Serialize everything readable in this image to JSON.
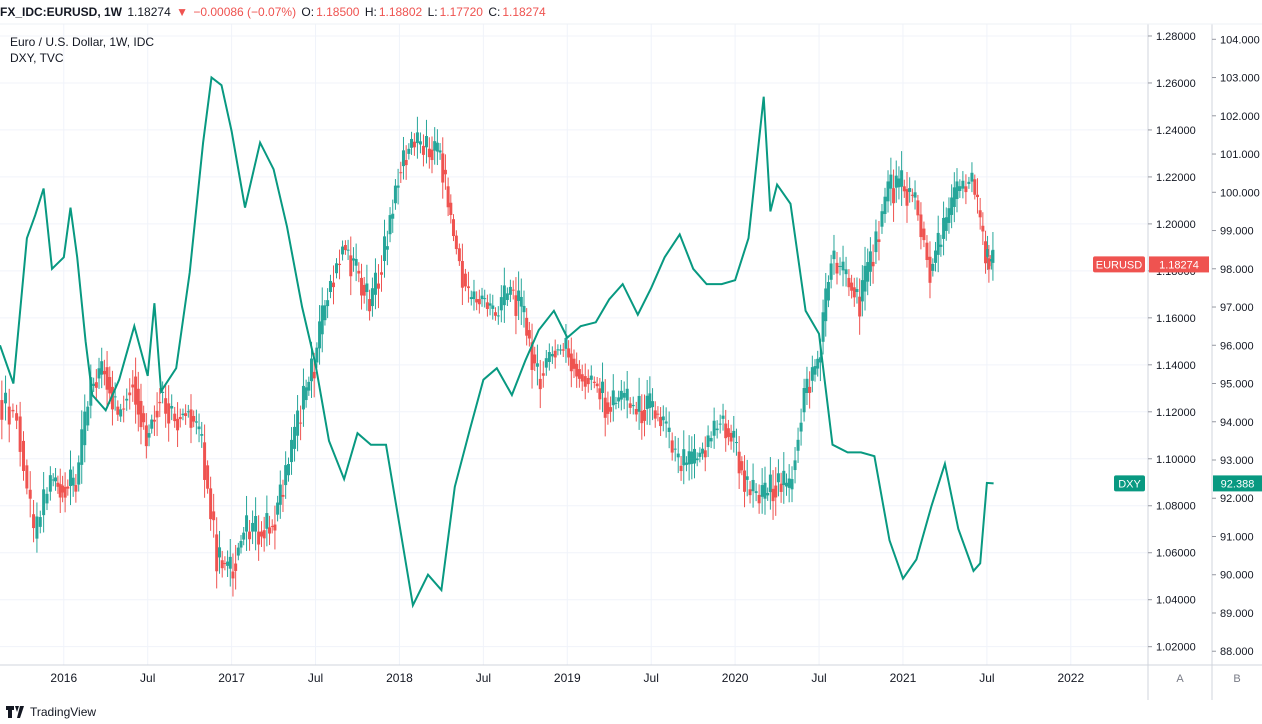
{
  "header": {
    "symbol": "FX_IDC:EURUSD, 1W",
    "last": "1.18274",
    "change_arrow": "▼",
    "change": "−0.00086 (−0.07%)",
    "o_label": "O:",
    "o_value": "1.18500",
    "h_label": "H:",
    "h_value": "1.18802",
    "l_label": "L:",
    "l_value": "1.17720",
    "c_label": "C:",
    "c_value": "1.18274"
  },
  "legend": {
    "main": "Euro / U.S. Dollar, 1W, IDC",
    "compare": "DXY, TVC"
  },
  "footer": {
    "brand": "TradingView"
  },
  "colors": {
    "up": "#26a69a",
    "down": "#ef5350",
    "dxy": "#089981",
    "grid": "#f0f3fa"
  },
  "chart_data": {
    "type": "line",
    "x_tick_labels": [
      "2016",
      "Jul",
      "2017",
      "Jul",
      "2018",
      "Jul",
      "2019",
      "Jul",
      "2020",
      "Jul",
      "2021",
      "Jul",
      "2022"
    ],
    "x_tick_dates": [
      2016.0,
      2016.5,
      2017.0,
      2017.5,
      2018.0,
      2018.5,
      2019.0,
      2019.5,
      2020.0,
      2020.5,
      2021.0,
      2021.5,
      2022.0
    ],
    "xlim": [
      2015.62,
      2022.46
    ],
    "right_axis": {
      "ticks": [
        "1.28000",
        "1.26000",
        "1.24000",
        "1.22000",
        "1.20000",
        "1.18000",
        "1.16000",
        "1.14000",
        "1.12000",
        "1.10000",
        "1.08000",
        "1.06000",
        "1.04000",
        "1.02000"
      ],
      "ylim": [
        1.0122,
        1.2851
      ],
      "label": "A"
    },
    "left_axis": {
      "ticks": [
        "104.000",
        "103.000",
        "102.000",
        "101.000",
        "100.000",
        "99.000",
        "98.000",
        "97.000",
        "96.000",
        "95.000",
        "94.000",
        "93.000",
        "92.000",
        "91.000",
        "90.000",
        "89.000",
        "88.000"
      ],
      "ylim": [
        87.64,
        104.4
      ],
      "label": "B"
    },
    "last_labels": {
      "eurusd": {
        "name": "EURUSD",
        "value": "1.18274",
        "y": 1.18274
      },
      "dxy": {
        "name": "DXY",
        "value": "92.388",
        "y": 92.388
      }
    },
    "series": [
      {
        "name": "EURUSD",
        "style": "candlestick",
        "points": [
          [
            2015.62,
            1.125
          ],
          [
            2015.73,
            1.118
          ],
          [
            2015.83,
            1.066
          ],
          [
            2015.93,
            1.091
          ],
          [
            2016.0,
            1.088
          ],
          [
            2016.08,
            1.089
          ],
          [
            2016.17,
            1.131
          ],
          [
            2016.25,
            1.139
          ],
          [
            2016.33,
            1.118
          ],
          [
            2016.42,
            1.135
          ],
          [
            2016.5,
            1.109
          ],
          [
            2016.58,
            1.128
          ],
          [
            2016.67,
            1.117
          ],
          [
            2016.75,
            1.121
          ],
          [
            2016.83,
            1.107
          ],
          [
            2016.92,
            1.058
          ],
          [
            2017.0,
            1.052
          ],
          [
            2017.08,
            1.069
          ],
          [
            2017.17,
            1.069
          ],
          [
            2017.25,
            1.072
          ],
          [
            2017.33,
            1.093
          ],
          [
            2017.42,
            1.121
          ],
          [
            2017.5,
            1.141
          ],
          [
            2017.58,
            1.171
          ],
          [
            2017.67,
            1.191
          ],
          [
            2017.75,
            1.18
          ],
          [
            2017.83,
            1.165
          ],
          [
            2017.92,
            1.189
          ],
          [
            2018.0,
            1.222
          ],
          [
            2018.08,
            1.235
          ],
          [
            2018.17,
            1.232
          ],
          [
            2018.25,
            1.23
          ],
          [
            2018.33,
            1.195
          ],
          [
            2018.42,
            1.168
          ],
          [
            2018.5,
            1.168
          ],
          [
            2018.58,
            1.161
          ],
          [
            2018.67,
            1.172
          ],
          [
            2018.75,
            1.16
          ],
          [
            2018.83,
            1.134
          ],
          [
            2018.92,
            1.146
          ],
          [
            2019.0,
            1.147
          ],
          [
            2019.08,
            1.136
          ],
          [
            2019.17,
            1.132
          ],
          [
            2019.25,
            1.122
          ],
          [
            2019.33,
            1.126
          ],
          [
            2019.42,
            1.12
          ],
          [
            2019.5,
            1.122
          ],
          [
            2019.58,
            1.115
          ],
          [
            2019.67,
            1.097
          ],
          [
            2019.75,
            1.098
          ],
          [
            2019.83,
            1.105
          ],
          [
            2019.92,
            1.117
          ],
          [
            2020.0,
            1.107
          ],
          [
            2020.08,
            1.087
          ],
          [
            2020.17,
            1.083
          ],
          [
            2020.25,
            1.09
          ],
          [
            2020.33,
            1.087
          ],
          [
            2020.42,
            1.128
          ],
          [
            2020.5,
            1.141
          ],
          [
            2020.58,
            1.185
          ],
          [
            2020.67,
            1.177
          ],
          [
            2020.75,
            1.167
          ],
          [
            2020.83,
            1.188
          ],
          [
            2020.92,
            1.215
          ],
          [
            2021.0,
            1.216
          ],
          [
            2021.08,
            1.21
          ],
          [
            2021.17,
            1.18
          ],
          [
            2021.25,
            1.197
          ],
          [
            2021.33,
            1.214
          ],
          [
            2021.42,
            1.219
          ],
          [
            2021.5,
            1.186
          ],
          [
            2021.54,
            1.18274
          ]
        ]
      },
      {
        "name": "DXY",
        "style": "line",
        "points": [
          [
            2015.62,
            96.0
          ],
          [
            2015.7,
            95.0
          ],
          [
            2015.78,
            98.8
          ],
          [
            2015.83,
            99.4
          ],
          [
            2015.88,
            100.1
          ],
          [
            2015.93,
            98.0
          ],
          [
            2016.0,
            98.3
          ],
          [
            2016.04,
            99.6
          ],
          [
            2016.08,
            98.3
          ],
          [
            2016.13,
            96.1
          ],
          [
            2016.17,
            94.7
          ],
          [
            2016.25,
            94.3
          ],
          [
            2016.33,
            95.1
          ],
          [
            2016.42,
            96.5
          ],
          [
            2016.5,
            95.2
          ],
          [
            2016.54,
            97.1
          ],
          [
            2016.58,
            94.8
          ],
          [
            2016.67,
            95.4
          ],
          [
            2016.75,
            97.9
          ],
          [
            2016.83,
            101.3
          ],
          [
            2016.88,
            103.0
          ],
          [
            2016.94,
            102.8
          ],
          [
            2017.0,
            101.6
          ],
          [
            2017.08,
            99.6
          ],
          [
            2017.17,
            101.3
          ],
          [
            2017.25,
            100.6
          ],
          [
            2017.33,
            99.1
          ],
          [
            2017.42,
            97.0
          ],
          [
            2017.5,
            95.5
          ],
          [
            2017.58,
            93.5
          ],
          [
            2017.67,
            92.5
          ],
          [
            2017.75,
            93.7
          ],
          [
            2017.83,
            93.4
          ],
          [
            2017.92,
            93.4
          ],
          [
            2018.0,
            91.3
          ],
          [
            2018.08,
            89.2
          ],
          [
            2018.17,
            90.0
          ],
          [
            2018.25,
            89.6
          ],
          [
            2018.33,
            92.3
          ],
          [
            2018.42,
            93.8
          ],
          [
            2018.5,
            95.1
          ],
          [
            2018.58,
            95.4
          ],
          [
            2018.67,
            94.7
          ],
          [
            2018.75,
            95.6
          ],
          [
            2018.83,
            96.4
          ],
          [
            2018.92,
            96.9
          ],
          [
            2019.0,
            96.2
          ],
          [
            2019.08,
            96.5
          ],
          [
            2019.17,
            96.6
          ],
          [
            2019.25,
            97.2
          ],
          [
            2019.33,
            97.6
          ],
          [
            2019.42,
            96.8
          ],
          [
            2019.5,
            97.5
          ],
          [
            2019.58,
            98.3
          ],
          [
            2019.67,
            98.9
          ],
          [
            2019.75,
            98.0
          ],
          [
            2019.83,
            97.6
          ],
          [
            2019.92,
            97.6
          ],
          [
            2020.0,
            97.7
          ],
          [
            2020.08,
            98.8
          ],
          [
            2020.17,
            102.5
          ],
          [
            2020.21,
            99.5
          ],
          [
            2020.25,
            100.2
          ],
          [
            2020.33,
            99.7
          ],
          [
            2020.42,
            96.9
          ],
          [
            2020.5,
            96.3
          ],
          [
            2020.58,
            93.4
          ],
          [
            2020.67,
            93.2
          ],
          [
            2020.75,
            93.2
          ],
          [
            2020.83,
            93.1
          ],
          [
            2020.92,
            90.9
          ],
          [
            2021.0,
            89.9
          ],
          [
            2021.08,
            90.4
          ],
          [
            2021.17,
            91.8
          ],
          [
            2021.25,
            92.9
          ],
          [
            2021.33,
            91.2
          ],
          [
            2021.42,
            90.1
          ],
          [
            2021.46,
            90.3
          ],
          [
            2021.5,
            92.4
          ],
          [
            2021.54,
            92.388
          ]
        ]
      }
    ]
  }
}
